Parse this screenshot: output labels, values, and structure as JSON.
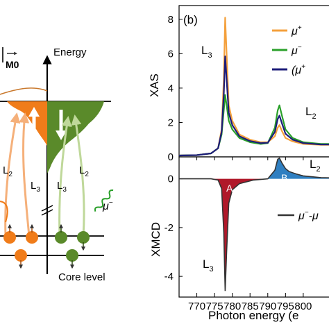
{
  "schematic": {
    "m_label": "M⁠0",
    "energy_label": "Energy",
    "l2_left": "L",
    "l2_left_sub": "2",
    "l3_left": "L",
    "l3_left_sub": "3",
    "l3_right": "L",
    "l3_right_sub": "3",
    "l2_right": "L",
    "l2_right_sub": "2",
    "mu_minus": "μ",
    "mu_minus_sup": "−",
    "core_level": "Core level",
    "colors": {
      "orange": "#f07c1a",
      "green": "#5a8a2a",
      "dark_green": "#3e7a1c"
    }
  },
  "chart_data": [
    {
      "type": "line",
      "panel_label": "(b)",
      "ylabel": "XAS",
      "xlim": [
        765,
        810
      ],
      "ylim": [
        0,
        8.8
      ],
      "yticks": [
        "0",
        "2",
        "4",
        "6",
        "8"
      ],
      "annotations": [
        {
          "text": "L",
          "sub": "3"
        },
        {
          "text": "L",
          "sub": "2"
        }
      ],
      "legend": {
        "placement": "top-right",
        "entries": [
          {
            "text": "μ",
            "sup": "+",
            "color": "#f4a03c"
          },
          {
            "text": "μ",
            "sup": "−",
            "color": "#2aa02a"
          },
          {
            "text": "(μ",
            "sup": "+",
            "color": "#1c1c7a"
          }
        ]
      },
      "series": [
        {
          "name": "μ+",
          "color": "#f4a03c",
          "x": [
            765,
            770,
            774,
            776,
            777,
            777.6,
            778,
            778.4,
            779,
            780,
            782,
            785,
            788,
            790,
            792,
            792.8,
            793.3,
            794,
            795,
            797,
            800,
            805,
            810
          ],
          "y": [
            0.08,
            0.1,
            0.2,
            0.5,
            1.6,
            4.5,
            8.1,
            6.0,
            3.0,
            2.1,
            1.3,
            1.0,
            0.85,
            0.85,
            1.2,
            1.7,
            1.85,
            1.5,
            1.1,
            0.9,
            0.75,
            0.7,
            0.7
          ]
        },
        {
          "name": "μ−",
          "color": "#2aa02a",
          "x": [
            765,
            770,
            774,
            776,
            777,
            777.6,
            778,
            778.4,
            779,
            780,
            782,
            785,
            788,
            790,
            792,
            792.8,
            793.3,
            794,
            795,
            797,
            800,
            805,
            810
          ],
          "y": [
            0.08,
            0.1,
            0.2,
            0.5,
            1.3,
            2.7,
            3.6,
            3.0,
            2.1,
            1.6,
            1.1,
            0.85,
            0.75,
            0.8,
            1.7,
            2.7,
            3.0,
            2.4,
            1.6,
            1.1,
            0.85,
            0.75,
            0.75
          ]
        },
        {
          "name": "(μ+",
          "color": "#1c1c7a",
          "x": [
            765,
            770,
            774,
            776,
            777,
            777.6,
            778,
            778.4,
            779,
            780,
            782,
            785,
            788,
            790,
            792,
            792.8,
            793.3,
            794,
            795,
            797,
            800,
            805,
            810
          ],
          "y": [
            0.08,
            0.1,
            0.2,
            0.5,
            1.45,
            3.6,
            5.85,
            4.5,
            2.55,
            1.85,
            1.2,
            0.92,
            0.8,
            0.82,
            1.45,
            2.2,
            2.4,
            1.95,
            1.35,
            1.0,
            0.8,
            0.72,
            0.72
          ]
        }
      ]
    },
    {
      "type": "area",
      "ylabel": "XMCD",
      "xlabel": "Photon energy (e",
      "xlim": [
        765,
        810
      ],
      "ylim": [
        -4.85,
        0.9
      ],
      "xticks": [
        "770",
        "775",
        "780",
        "785",
        "790",
        "795",
        "800"
      ],
      "yticks": [
        "0",
        "-2",
        "-4"
      ],
      "annotations": [
        {
          "text": "L",
          "sub": "2"
        },
        {
          "text": "L",
          "sub": "3"
        }
      ],
      "peak_labels": [
        "A",
        "B"
      ],
      "legend": {
        "placement": "right",
        "entries": [
          {
            "text": "μ",
            "sup": "−",
            "suffix": "-μ",
            "color": "#333333"
          }
        ]
      },
      "fill_colors": {
        "negative": "#b0182a",
        "positive": "#2f7fc1",
        "line": "#333333"
      },
      "series": [
        {
          "name": "μ−-μ",
          "x": [
            765,
            774,
            776,
            777,
            777.6,
            778,
            778.4,
            779,
            780,
            782,
            786,
            790,
            792,
            792.8,
            793.3,
            794,
            795,
            796,
            798,
            800,
            805,
            810
          ],
          "y": [
            0,
            0,
            -0.05,
            -0.4,
            -2.2,
            -4.6,
            -3.0,
            -1.0,
            -0.45,
            -0.2,
            -0.05,
            0.0,
            0.35,
            0.8,
            0.85,
            0.65,
            0.42,
            0.3,
            0.2,
            0.12,
            0.05,
            0.03
          ]
        }
      ]
    }
  ]
}
